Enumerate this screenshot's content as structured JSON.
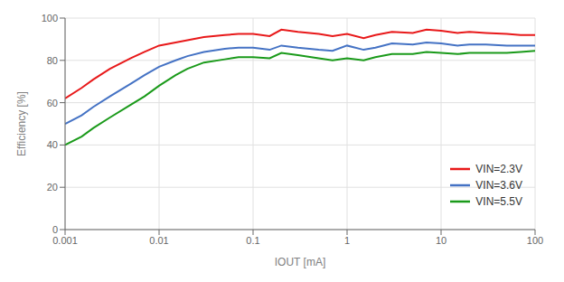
{
  "chart_data": {
    "type": "line",
    "xlabel": "IOUT [mA]",
    "ylabel": "Efficiency [%]",
    "log": "x",
    "grid": true,
    "legend": "lower right",
    "xlim": [
      0.001,
      100
    ],
    "xticks": [
      0.001,
      0.01,
      0.1,
      1,
      10,
      100
    ],
    "ylim": [
      0,
      100
    ],
    "yticks": [
      0,
      20,
      40,
      60,
      80,
      100
    ],
    "x": [
      0.001,
      0.0015,
      0.002,
      0.003,
      0.005,
      0.007,
      0.01,
      0.015,
      0.02,
      0.03,
      0.05,
      0.07,
      0.1,
      0.15,
      0.2,
      0.3,
      0.5,
      0.7,
      1.0,
      1.5,
      2.0,
      3.0,
      5.0,
      7.0,
      10.0,
      15.0,
      20.0,
      30.0,
      50.0,
      70.0,
      100.0
    ],
    "series": [
      {
        "name": "VIN=2.3V",
        "color": "#e8191a",
        "values": [
          62,
          67,
          71,
          76,
          81,
          84,
          87,
          88.5,
          89.5,
          91,
          92,
          92.5,
          92.5,
          91.5,
          94.5,
          93.5,
          92.5,
          91.5,
          92.5,
          90.5,
          92,
          93.5,
          93,
          94.5,
          94,
          93,
          93.5,
          93,
          92.5,
          92,
          92
        ]
      },
      {
        "name": "VIN=3.6V",
        "color": "#4472c4",
        "values": [
          50,
          54,
          58,
          63,
          69,
          73,
          77,
          80,
          82,
          84,
          85.5,
          86,
          86,
          85,
          87,
          86,
          85,
          84.5,
          87,
          85,
          86,
          88,
          87.5,
          88.5,
          88,
          87,
          87.5,
          87.5,
          87,
          87,
          87
        ]
      },
      {
        "name": "VIN=5.5V",
        "color": "#1a9a1a",
        "values": [
          40,
          44,
          48,
          53,
          59,
          63,
          68,
          73,
          76,
          79,
          80.5,
          81.5,
          81.5,
          81,
          83.5,
          82.5,
          81,
          80,
          81,
          80,
          81.5,
          83,
          83,
          84,
          83.5,
          83,
          83.5,
          83.5,
          83.5,
          84,
          84.5
        ]
      }
    ]
  }
}
